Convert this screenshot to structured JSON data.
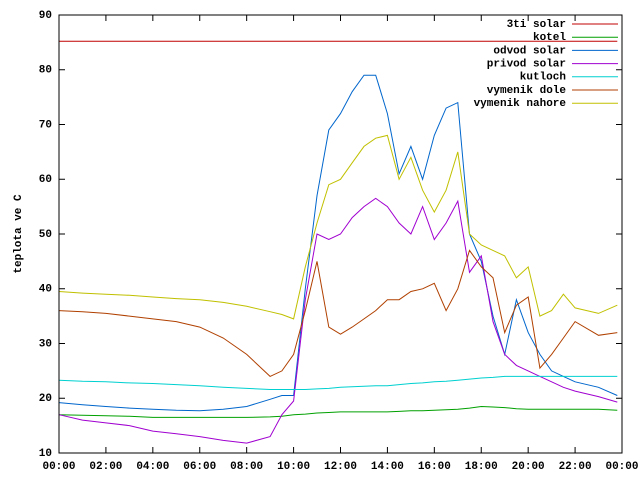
{
  "chart_data": {
    "type": "line",
    "y_label": "teplota ve C",
    "x": [
      0,
      1,
      2,
      3,
      4,
      5,
      6,
      7,
      8,
      9,
      9.5,
      10,
      10.5,
      11,
      11.5,
      12,
      12.5,
      13,
      13.5,
      14,
      14.5,
      15,
      15.5,
      16,
      16.5,
      17,
      17.5,
      18,
      18.5,
      19,
      19.5,
      20,
      20.5,
      21,
      21.5,
      22,
      23,
      23.8
    ],
    "xlim": [
      0,
      24
    ],
    "xticks": [
      {
        "value": 0,
        "label": "00:00"
      },
      {
        "value": 2,
        "label": "02:00"
      },
      {
        "value": 4,
        "label": "04:00"
      },
      {
        "value": 6,
        "label": "06:00"
      },
      {
        "value": 8,
        "label": "08:00"
      },
      {
        "value": 10,
        "label": "10:00"
      },
      {
        "value": 12,
        "label": "12:00"
      },
      {
        "value": 14,
        "label": "14:00"
      },
      {
        "value": 16,
        "label": "16:00"
      },
      {
        "value": 18,
        "label": "18:00"
      },
      {
        "value": 20,
        "label": "20:00"
      },
      {
        "value": 22,
        "label": "22:00"
      },
      {
        "value": 24,
        "label": "00:00"
      }
    ],
    "ylim": [
      10,
      90
    ],
    "yticks": [
      10,
      20,
      30,
      40,
      50,
      60,
      70,
      80,
      90
    ],
    "grid": false,
    "legend": "top-right",
    "series": [
      {
        "name": "3ti solar",
        "color": "#c00000",
        "values": [
          85.2,
          85.2,
          85.2,
          85.2,
          85.2,
          85.2,
          85.2,
          85.2,
          85.2,
          85.2,
          85.2,
          85.2,
          85.2,
          85.2,
          85.2,
          85.2,
          85.2,
          85.2,
          85.2,
          85.2,
          85.2,
          85.2,
          85.2,
          85.2,
          85.2,
          85.2,
          85.2,
          85.2,
          85.2,
          85.2,
          85.2,
          85.2,
          85.2,
          85.2,
          85.2,
          85.2,
          85.2,
          85.2
        ]
      },
      {
        "name": "kotel",
        "color": "#00a000",
        "values": [
          17,
          16.9,
          16.8,
          16.7,
          16.5,
          16.5,
          16.5,
          16.5,
          16.5,
          16.6,
          16.7,
          17,
          17.1,
          17.3,
          17.4,
          17.5,
          17.5,
          17.5,
          17.5,
          17.5,
          17.6,
          17.7,
          17.7,
          17.8,
          17.9,
          18,
          18.2,
          18.5,
          18.4,
          18.3,
          18.1,
          18,
          18,
          18,
          18,
          18,
          18,
          17.8
        ]
      },
      {
        "name": "odvod solar",
        "color": "#0066cc",
        "values": [
          19.2,
          18.8,
          18.5,
          18.2,
          18,
          17.8,
          17.7,
          18,
          18.5,
          19.8,
          20.5,
          20.5,
          40,
          57,
          69,
          72,
          76,
          79,
          79,
          72,
          61,
          66,
          60,
          68,
          73,
          74,
          50,
          45,
          35,
          28,
          38,
          32,
          28,
          25,
          24,
          23,
          22,
          20.5
        ]
      },
      {
        "name": "privod solar",
        "color": "#a000d0",
        "values": [
          17,
          16,
          15.5,
          15,
          14,
          13.5,
          13,
          12.3,
          11.8,
          13,
          17,
          19.5,
          38,
          50,
          49,
          50,
          53,
          55,
          56.5,
          55,
          52,
          50,
          55,
          49,
          52,
          56,
          43,
          46,
          34,
          28,
          26,
          25,
          24,
          23,
          22,
          21.3,
          20.3,
          19.3
        ]
      },
      {
        "name": "kutloch",
        "color": "#00d0d0",
        "values": [
          23.3,
          23.1,
          23,
          22.8,
          22.7,
          22.5,
          22.3,
          22,
          21.8,
          21.6,
          21.6,
          21.6,
          21.6,
          21.7,
          21.8,
          22,
          22.1,
          22.2,
          22.3,
          22.3,
          22.5,
          22.7,
          22.8,
          23,
          23.1,
          23.3,
          23.5,
          23.7,
          23.8,
          24,
          24,
          24,
          24,
          24,
          24,
          24,
          24,
          24
        ]
      },
      {
        "name": "vymenik dole",
        "color": "#b04000",
        "values": [
          36,
          35.8,
          35.5,
          35,
          34.5,
          34,
          33,
          31,
          28,
          24,
          25,
          28,
          36,
          45,
          33,
          31.7,
          33,
          34.5,
          36,
          38,
          38,
          39.5,
          40,
          41,
          36,
          40,
          47,
          44,
          42,
          32,
          37,
          38.5,
          25.5,
          28,
          31,
          34,
          31.5,
          32
        ]
      },
      {
        "name": "vymenik nahore",
        "color": "#c0c000",
        "values": [
          39.5,
          39.2,
          39,
          38.8,
          38.5,
          38.2,
          38,
          37.5,
          36.8,
          35.8,
          35.3,
          34.5,
          44,
          52,
          59,
          60,
          63,
          66,
          67.5,
          68,
          60,
          64,
          58,
          54,
          58,
          65,
          50,
          48,
          47,
          46,
          42,
          44,
          35,
          36,
          39,
          36.5,
          35.5,
          37
        ]
      }
    ]
  }
}
